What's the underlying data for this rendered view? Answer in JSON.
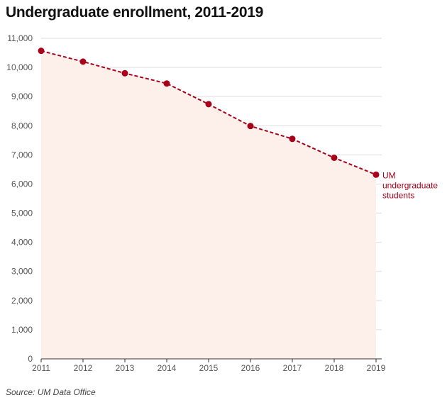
{
  "chart_data": {
    "type": "area",
    "title": "Undergraduate enrollment, 2011-2019",
    "xlabel": "",
    "ylabel": "",
    "x": [
      2011,
      2012,
      2013,
      2014,
      2015,
      2016,
      2017,
      2018,
      2019
    ],
    "x_tick_labels": [
      "2011",
      "2012",
      "2013",
      "2014",
      "2015",
      "2016",
      "2017",
      "2018",
      "2019"
    ],
    "ylim": [
      0,
      11000
    ],
    "y_ticks": [
      0,
      1000,
      2000,
      3000,
      4000,
      5000,
      6000,
      7000,
      8000,
      9000,
      10000,
      11000
    ],
    "y_tick_labels": [
      "0",
      "1,000",
      "2,000",
      "3,000",
      "4,000",
      "5,000",
      "6,000",
      "7,000",
      "8,000",
      "9,000",
      "10,000",
      "11,000"
    ],
    "grid": true,
    "series": [
      {
        "name": "UM undergraduate students",
        "values": [
          10570,
          10200,
          9800,
          9450,
          8740,
          7990,
          7550,
          6900,
          6320
        ],
        "line_color": "#a8001a",
        "fill_color": "#fdf0ea"
      }
    ],
    "annotation": {
      "lines": [
        "UM",
        "undergraduate",
        "students"
      ],
      "color": "#a8001a"
    },
    "source": "Source: UM Data Office"
  }
}
